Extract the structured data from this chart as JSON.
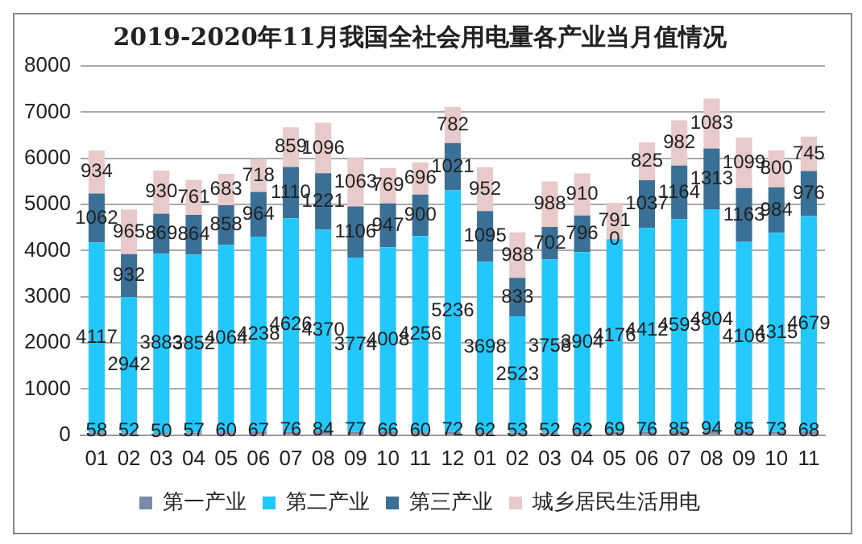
{
  "chart_data": {
    "type": "bar",
    "title": "2019-2020年11月我国全社会用电量各产业当月值情况",
    "categories": [
      "01",
      "02",
      "03",
      "04",
      "05",
      "06",
      "07",
      "08",
      "09",
      "10",
      "11",
      "12",
      "01",
      "02",
      "03",
      "04",
      "05",
      "06",
      "07",
      "08",
      "09",
      "10",
      "11"
    ],
    "stacked": true,
    "series": [
      {
        "name": "第一产业",
        "color": "#7b8aa8",
        "values": [
          58,
          52,
          50,
          57,
          60,
          67,
          76,
          84,
          77,
          66,
          60,
          72,
          62,
          53,
          52,
          62,
          69,
          76,
          85,
          94,
          85,
          73,
          68
        ]
      },
      {
        "name": "第二产业",
        "color": "#22c7fb",
        "values": [
          4117,
          2942,
          3883,
          3852,
          4064,
          4238,
          4626,
          4370,
          3774,
          4008,
          4256,
          5236,
          3698,
          2523,
          3758,
          3904,
          4176,
          4412,
          4593,
          4804,
          4106,
          4315,
          4679
        ]
      },
      {
        "name": "第三产业",
        "color": "#3a6f96",
        "values": [
          1062,
          932,
          869,
          864,
          858,
          964,
          1110,
          1221,
          1106,
          947,
          900,
          1021,
          1095,
          833,
          702,
          796,
          0,
          1037,
          1164,
          1313,
          1163,
          984,
          976
        ]
      },
      {
        "name": "城乡居民生活用电",
        "color": "#e8caca",
        "values": [
          934,
          965,
          930,
          761,
          683,
          718,
          859,
          1096,
          1063,
          769,
          696,
          782,
          952,
          988,
          988,
          910,
          791,
          825,
          982,
          1083,
          1099,
          800,
          745
        ]
      }
    ],
    "ylim": [
      0,
      8000
    ],
    "yticks": [
      0,
      1000,
      2000,
      3000,
      4000,
      5000,
      6000,
      7000,
      8000
    ],
    "grid": "y",
    "legend": "bottom",
    "data_labels": true
  }
}
